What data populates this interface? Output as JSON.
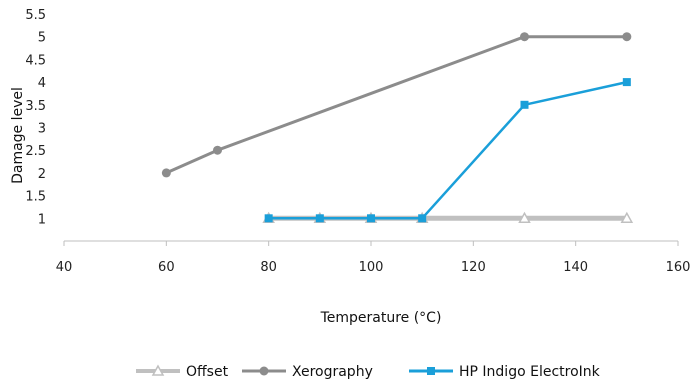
{
  "chart_data": {
    "type": "line",
    "title": "",
    "xlabel": "Temperature (°C)",
    "ylabel": "Damage level",
    "xlim": [
      40,
      160
    ],
    "ylim": [
      0.5,
      5.5
    ],
    "x_ticks": [
      40,
      60,
      80,
      100,
      120,
      140,
      160
    ],
    "y_ticks": [
      1,
      1.5,
      2,
      2.5,
      3,
      3.5,
      4,
      4.5,
      5,
      5.5
    ],
    "grid": false,
    "legend_position": "bottom",
    "series": [
      {
        "name": "Offset",
        "color": "#c0c0c0",
        "marker": "triangle-open",
        "points": [
          [
            80,
            1
          ],
          [
            90,
            1
          ],
          [
            100,
            1
          ],
          [
            110,
            1
          ],
          [
            130,
            1
          ],
          [
            150,
            1
          ]
        ]
      },
      {
        "name": "Xerography",
        "color": "#8c8c8c",
        "marker": "circle",
        "points": [
          [
            60,
            2
          ],
          [
            70,
            2.5
          ],
          [
            130,
            5
          ],
          [
            150,
            5
          ]
        ]
      },
      {
        "name": "HP Indigo ElectroInk",
        "color": "#1a9fd9",
        "marker": "square",
        "points": [
          [
            80,
            1
          ],
          [
            90,
            1
          ],
          [
            100,
            1
          ],
          [
            110,
            1
          ],
          [
            130,
            3.5
          ],
          [
            150,
            4
          ]
        ]
      }
    ]
  }
}
